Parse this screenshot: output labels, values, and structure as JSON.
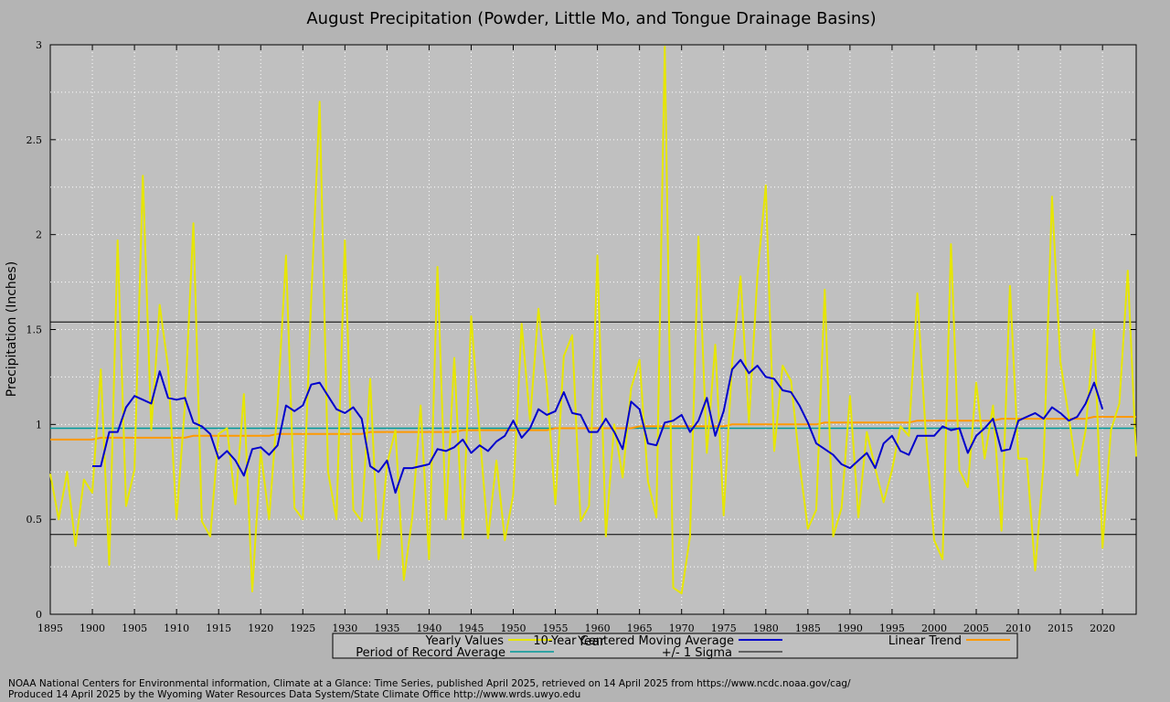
{
  "chart_data": {
    "type": "line",
    "title": "August Precipitation (Powder, Little Mo, and Tongue Drainage Basins)",
    "xlabel": "Year",
    "ylabel": "Precipitation (Inches)",
    "xlim": [
      1895,
      2024
    ],
    "ylim": [
      0,
      3
    ],
    "x_ticks": [
      1895,
      1900,
      1905,
      1910,
      1915,
      1920,
      1925,
      1930,
      1935,
      1940,
      1945,
      1950,
      1955,
      1960,
      1965,
      1970,
      1975,
      1980,
      1985,
      1990,
      1995,
      2000,
      2005,
      2010,
      2015,
      2020
    ],
    "y_ticks": [
      0,
      0.5,
      1,
      1.5,
      2,
      2.5,
      3
    ],
    "grid": true,
    "colors": {
      "yearly": "#e6e600",
      "moving_average": "#0000cc",
      "linear_trend": "#ff9900",
      "period_average": "#009999",
      "sigma": "#000000",
      "plot_background": "#c0c0c0",
      "page_background": "#b4b4b4"
    },
    "series": [
      {
        "name": "Yearly Values",
        "start_year": 1895,
        "values": [
          0.74,
          0.5,
          0.75,
          0.36,
          0.71,
          0.64,
          1.29,
          0.26,
          1.97,
          0.57,
          0.76,
          2.31,
          0.97,
          1.63,
          1.3,
          0.5,
          1.1,
          2.06,
          0.49,
          0.41,
          0.95,
          0.98,
          0.58,
          1.16,
          0.12,
          0.86,
          0.5,
          1.1,
          1.89,
          0.56,
          0.5,
          1.66,
          2.7,
          0.75,
          0.5,
          1.97,
          0.55,
          0.49,
          1.24,
          0.29,
          0.79,
          0.97,
          0.18,
          0.51,
          1.1,
          0.29,
          1.83,
          0.5,
          1.35,
          0.4,
          1.57,
          0.96,
          0.4,
          0.81,
          0.39,
          0.63,
          1.53,
          1.02,
          1.61,
          1.2,
          0.58,
          1.36,
          1.47,
          0.49,
          0.57,
          1.89,
          0.41,
          1.0,
          0.72,
          1.19,
          1.34,
          0.7,
          0.51,
          2.99,
          0.14,
          0.11,
          0.41,
          1.99,
          0.85,
          1.42,
          0.52,
          1.33,
          1.78,
          1.01,
          1.78,
          2.26,
          0.86,
          1.31,
          1.23,
          0.8,
          0.45,
          0.55,
          1.71,
          0.41,
          0.56,
          1.15,
          0.51,
          0.96,
          0.77,
          0.59,
          0.76,
          0.99,
          0.94,
          1.69,
          0.95,
          0.39,
          0.29,
          1.95,
          0.76,
          0.67,
          1.22,
          0.82,
          1.1,
          0.44,
          1.73,
          0.82,
          0.82,
          0.23,
          0.79,
          2.2,
          1.33,
          1.04,
          0.73,
          0.97,
          1.5,
          0.35,
          0.97,
          1.11,
          1.81,
          0.83
        ]
      },
      {
        "name": "10-Year Centered Moving Average",
        "start_year": 1900,
        "values": [
          0.78,
          0.78,
          0.96,
          0.96,
          1.09,
          1.15,
          1.13,
          1.11,
          1.28,
          1.14,
          1.13,
          1.14,
          1.01,
          0.99,
          0.95,
          0.82,
          0.86,
          0.81,
          0.73,
          0.87,
          0.88,
          0.84,
          0.89,
          1.1,
          1.07,
          1.1,
          1.21,
          1.22,
          1.15,
          1.08,
          1.06,
          1.09,
          1.03,
          0.78,
          0.75,
          0.81,
          0.64,
          0.77,
          0.77,
          0.78,
          0.79,
          0.87,
          0.86,
          0.88,
          0.92,
          0.85,
          0.89,
          0.86,
          0.91,
          0.94,
          1.02,
          0.93,
          0.98,
          1.08,
          1.05,
          1.07,
          1.17,
          1.06,
          1.05,
          0.96,
          0.96,
          1.03,
          0.96,
          0.87,
          1.12,
          1.08,
          0.9,
          0.89,
          1.01,
          1.02,
          1.05,
          0.96,
          1.02,
          1.14,
          0.94,
          1.07,
          1.29,
          1.34,
          1.27,
          1.31,
          1.25,
          1.24,
          1.18,
          1.17,
          1.1,
          1.01,
          0.9,
          0.87,
          0.84,
          0.79,
          0.77,
          0.81,
          0.85,
          0.77,
          0.9,
          0.94,
          0.86,
          0.84,
          0.94,
          0.94,
          0.94,
          0.99,
          0.97,
          0.98,
          0.85,
          0.94,
          0.98,
          1.03,
          0.86,
          0.87,
          1.02,
          1.04,
          1.06,
          1.03,
          1.09,
          1.06,
          1.02,
          1.04,
          1.11,
          1.22,
          1.08
        ]
      },
      {
        "name": "Linear Trend",
        "x": [
          1895,
          2024
        ],
        "values": [
          0.92,
          1.04
        ]
      },
      {
        "name": "Period of Record Average",
        "x": [
          1895,
          2024
        ],
        "values": [
          0.98,
          0.98
        ]
      },
      {
        "name": "+/- 1 Sigma",
        "x": [
          1895,
          2024
        ],
        "upper": 1.54,
        "lower": 0.42
      }
    ]
  },
  "footer": {
    "line1": "NOAA National Centers for Environmental information, Climate at a Glance: Time Series, published April 2025, retrieved on 14 April 2025 from https://www.ncdc.noaa.gov/cag/",
    "line2": "Produced 14 April 2025 by the Wyoming Water Resources Data System/State Climate Office http://www.wrds.uwyo.edu"
  }
}
